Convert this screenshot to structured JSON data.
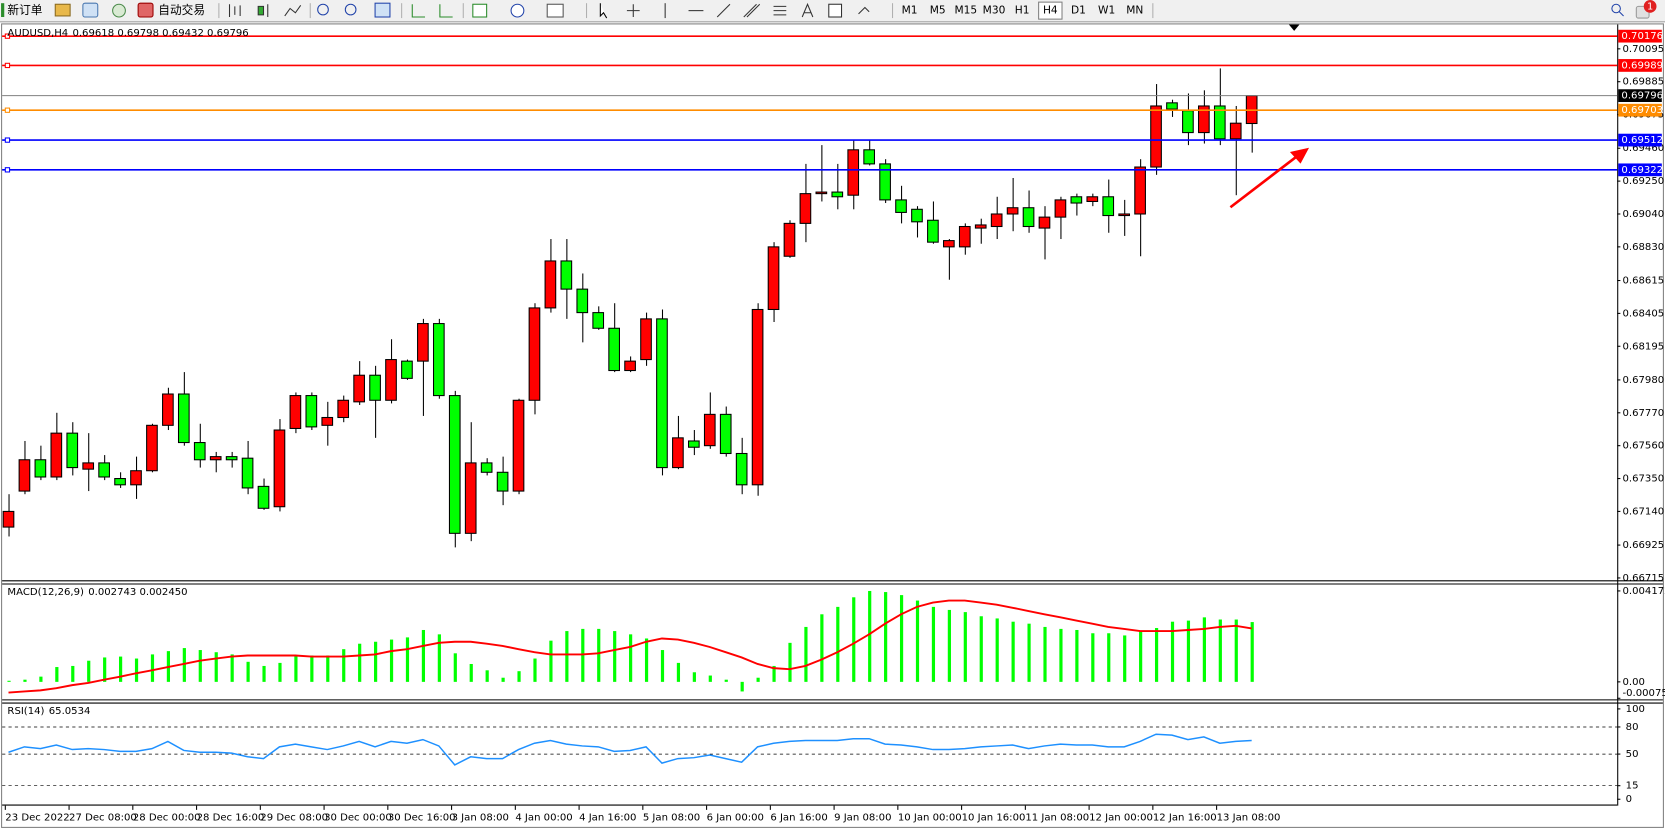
{
  "toolbar": {
    "new_order": "新订单",
    "auto_trading": "自动交易",
    "timeframes": [
      "M1",
      "M5",
      "M15",
      "M30",
      "H1",
      "H4",
      "D1",
      "W1",
      "MN"
    ],
    "active_timeframe": 5,
    "alerts": 1
  },
  "chart_data": [
    {
      "type": "candlestick",
      "title": "AUDUSD,H4",
      "up_color": "#ff0000",
      "down_color": "#00ff00",
      "grid": false,
      "categories": [
        "23 Dec 2022",
        null,
        null,
        null,
        "27 Dec 08:00",
        null,
        null,
        null,
        "28 Dec 00:00",
        null,
        null,
        null,
        "28 Dec 16:00",
        null,
        null,
        null,
        "29 Dec 08:00",
        null,
        null,
        null,
        "30 Dec 00:00",
        null,
        null,
        null,
        "30 Dec 16:00",
        null,
        null,
        null,
        "3 Jan 08:00",
        null,
        null,
        null,
        "4 Jan 00:00",
        null,
        null,
        null,
        "4 Jan 16:00",
        null,
        null,
        null,
        "5 Jan 08:00",
        null,
        null,
        null,
        "6 Jan 00:00",
        null,
        null,
        null,
        "6 Jan 16:00",
        null,
        null,
        null,
        "9 Jan 08:00",
        null,
        null,
        null,
        "10 Jan 00:00",
        null,
        null,
        null,
        "10 Jan 16:00",
        null,
        null,
        null,
        "11 Jan 08:00",
        null,
        null,
        null,
        "12 Jan 00:00",
        null,
        null,
        null,
        "12 Jan 16:00",
        null,
        null,
        null,
        "13 Jan 08:00",
        null,
        null
      ],
      "open": [
        0.6704,
        0.6727,
        0.6747,
        0.6736,
        0.6764,
        0.6741,
        0.6745,
        0.6735,
        0.6731,
        0.674,
        0.6769,
        0.6789,
        0.6758,
        0.6747,
        0.6749,
        0.6748,
        0.673,
        0.6717,
        0.6767,
        0.6788,
        0.6769,
        0.6774,
        0.6784,
        0.6801,
        0.6785,
        0.681,
        0.681,
        0.6834,
        0.6788,
        0.67,
        0.6745,
        0.6739,
        0.6727,
        0.6785,
        0.6844,
        0.6874,
        0.6856,
        0.6841,
        0.6831,
        0.6804,
        0.6811,
        0.6837,
        0.6742,
        0.6759,
        0.6756,
        0.6776,
        0.6751,
        0.6731,
        0.6843,
        0.6877,
        0.6898,
        0.6917,
        0.6918,
        0.6916,
        0.6945,
        0.6936,
        0.6913,
        0.6907,
        0.69,
        0.6883,
        0.6883,
        0.6895,
        0.6896,
        0.6904,
        0.6908,
        0.6895,
        0.6902,
        0.6915,
        0.6912,
        0.6915,
        0.6903,
        0.6904,
        0.6934,
        0.6975,
        0.697,
        0.6956,
        0.6973,
        0.6952,
        0.69618
      ],
      "high": [
        0.6725,
        0.6759,
        0.6756,
        0.6777,
        0.6771,
        0.6764,
        0.675,
        0.6739,
        0.6749,
        0.677,
        0.6793,
        0.6803,
        0.677,
        0.6752,
        0.6752,
        0.6759,
        0.6735,
        0.6773,
        0.679,
        0.679,
        0.6784,
        0.6788,
        0.681,
        0.6807,
        0.6824,
        0.6811,
        0.6837,
        0.6837,
        0.6791,
        0.6771,
        0.6748,
        0.6749,
        0.6786,
        0.6847,
        0.6888,
        0.6888,
        0.6866,
        0.6845,
        0.6847,
        0.6813,
        0.6841,
        0.6843,
        0.6775,
        0.6766,
        0.679,
        0.6781,
        0.6761,
        0.6847,
        0.6886,
        0.69,
        0.6936,
        0.6948,
        0.6936,
        0.6951,
        0.6951,
        0.6939,
        0.6922,
        0.6909,
        0.6912,
        0.6888,
        0.6898,
        0.6901,
        0.6915,
        0.6927,
        0.6919,
        0.6909,
        0.6915,
        0.6917,
        0.6917,
        0.6926,
        0.6913,
        0.6939,
        0.6987,
        0.6977,
        0.6981,
        0.6983,
        0.6997,
        0.6973,
        0.69798
      ],
      "low": [
        0.6698,
        0.6725,
        0.6734,
        0.6734,
        0.6737,
        0.6727,
        0.6734,
        0.6729,
        0.6722,
        0.6739,
        0.6766,
        0.6756,
        0.6742,
        0.6739,
        0.6742,
        0.6725,
        0.6715,
        0.6714,
        0.6764,
        0.6766,
        0.6756,
        0.6771,
        0.6782,
        0.6761,
        0.6783,
        0.6798,
        0.6775,
        0.6786,
        0.6691,
        0.6695,
        0.6737,
        0.6718,
        0.6725,
        0.6776,
        0.6841,
        0.6837,
        0.6822,
        0.683,
        0.6803,
        0.6803,
        0.6807,
        0.6737,
        0.6741,
        0.675,
        0.6754,
        0.6749,
        0.6725,
        0.6724,
        0.6835,
        0.6876,
        0.6886,
        0.6912,
        0.6907,
        0.6907,
        0.6935,
        0.6911,
        0.6898,
        0.6889,
        0.6885,
        0.6862,
        0.6878,
        0.6885,
        0.6888,
        0.6893,
        0.6892,
        0.6875,
        0.6888,
        0.6903,
        0.6909,
        0.6892,
        0.689,
        0.6877,
        0.6929,
        0.6966,
        0.6948,
        0.6949,
        0.6948,
        0.6916,
        0.69432
      ],
      "close": [
        0.6714,
        0.6747,
        0.6736,
        0.6764,
        0.6742,
        0.6745,
        0.6736,
        0.6731,
        0.674,
        0.6769,
        0.6789,
        0.6758,
        0.6747,
        0.6749,
        0.6747,
        0.6729,
        0.6716,
        0.6766,
        0.6788,
        0.6768,
        0.6774,
        0.6785,
        0.6801,
        0.6785,
        0.6811,
        0.6799,
        0.6834,
        0.6788,
        0.67,
        0.6745,
        0.6739,
        0.6727,
        0.6785,
        0.6844,
        0.6874,
        0.6856,
        0.6841,
        0.6831,
        0.6804,
        0.681,
        0.6837,
        0.6742,
        0.6761,
        0.6755,
        0.6776,
        0.6751,
        0.6731,
        0.6843,
        0.6883,
        0.6898,
        0.6917,
        0.6918,
        0.6915,
        0.6945,
        0.6936,
        0.6913,
        0.6905,
        0.6899,
        0.6886,
        0.6887,
        0.6896,
        0.6897,
        0.6904,
        0.6908,
        0.6896,
        0.6902,
        0.6913,
        0.6911,
        0.6915,
        0.6903,
        0.6904,
        0.6934,
        0.6973,
        0.6971,
        0.6956,
        0.6973,
        0.6952,
        0.6962,
        0.69796
      ],
      "ylim": [
        0.667,
        0.70244
      ],
      "yticks": [
        0.70095,
        0.69885,
        0.69675,
        {
          "value": 0.6946,
          "label": "0.69460"
        },
        {
          "value": 0.6925,
          "label": "0.69250"
        },
        {
          "value": 0.6904,
          "label": "0.69040"
        },
        {
          "value": 0.6883,
          "label": "0.68830"
        },
        0.68615,
        0.68405,
        0.68195,
        {
          "value": 0.6798,
          "label": "0.67980"
        },
        {
          "value": 0.6777,
          "label": "0.67770"
        },
        {
          "value": 0.6756,
          "label": "0.67560"
        },
        {
          "value": 0.6735,
          "label": "0.67350"
        },
        {
          "value": 0.6714,
          "label": "0.67140"
        },
        0.66925,
        0.66715
      ],
      "hlines": [
        {
          "value": 0.70176,
          "color": "#ff0000"
        },
        {
          "value": 0.69989,
          "color": "#ff0000"
        },
        {
          "value": 0.69703,
          "color": "#ff8c00"
        },
        {
          "value": 0.69512,
          "color": "#0000ff"
        },
        {
          "value": 0.69322,
          "color": "#0000ff"
        }
      ],
      "price_line_color": "#808080"
    },
    {
      "type": "macd",
      "title": "MACD(12,26,9)",
      "signal_readout": "0.002450",
      "histogram": {
        "color": "#00ff00",
        "values": [
          5e-05,
          0.0001,
          0.00024,
          0.00068,
          0.00073,
          0.00097,
          0.00112,
          0.00116,
          0.00107,
          0.00126,
          0.00141,
          0.00155,
          0.00146,
          0.00136,
          0.00126,
          0.00092,
          0.00073,
          0.00087,
          0.00121,
          0.00121,
          0.00121,
          0.0015,
          0.00175,
          0.00184,
          0.00194,
          0.00204,
          0.00238,
          0.00218,
          0.00131,
          0.00082,
          0.00053,
          0.00019,
          0.00049,
          0.00107,
          0.00189,
          0.00233,
          0.00243,
          0.00243,
          0.00233,
          0.00218,
          0.00199,
          0.00146,
          0.00087,
          0.00044,
          0.00029,
          0.0001,
          -0.00044,
          0.00019,
          0.00073,
          0.00179,
          0.00252,
          0.0031,
          0.00344,
          0.00388,
          0.00417,
          0.00412,
          0.00398,
          0.00373,
          0.00344,
          0.0033,
          0.0032,
          0.00301,
          0.00291,
          0.00276,
          0.00267,
          0.00252,
          0.00243,
          0.00238,
          0.00223,
          0.00223,
          0.00213,
          0.00233,
          0.00247,
          0.00276,
          0.00281,
          0.00296,
          0.00286,
          0.00286,
          0.002743
        ]
      },
      "signal": {
        "color": "#ff0000",
        "values": [
          -0.00049,
          -0.00044,
          -0.00039,
          -0.00029,
          -0.00015,
          -5e-05,
          0.0001,
          0.00024,
          0.00039,
          0.00053,
          0.00068,
          0.00082,
          0.00097,
          0.00107,
          0.00116,
          0.00121,
          0.00121,
          0.00121,
          0.00121,
          0.00116,
          0.00116,
          0.00116,
          0.00121,
          0.00126,
          0.00141,
          0.0015,
          0.00165,
          0.00179,
          0.00184,
          0.00184,
          0.00175,
          0.00165,
          0.0015,
          0.00136,
          0.00126,
          0.00126,
          0.00126,
          0.00131,
          0.00146,
          0.0016,
          0.00184,
          0.00199,
          0.00194,
          0.00179,
          0.0016,
          0.00136,
          0.00112,
          0.00082,
          0.00063,
          0.00058,
          0.00073,
          0.00102,
          0.00136,
          0.00175,
          0.00218,
          0.00267,
          0.0031,
          0.00344,
          0.00364,
          0.00373,
          0.00373,
          0.00364,
          0.00354,
          0.0034,
          0.00325,
          0.0031,
          0.00296,
          0.00281,
          0.00267,
          0.00252,
          0.00243,
          0.00233,
          0.00233,
          0.00233,
          0.00238,
          0.00243,
          0.00252,
          0.00257,
          0.00245
        ]
      },
      "ylim": [
        -0.000753,
        0.004172
      ],
      "yticks": [
        0.004172,
        {
          "value": 0,
          "label": "0.00"
        },
        -0.000753
      ]
    },
    {
      "type": "rsi",
      "title": "RSI(14)",
      "color": "#1e90ff",
      "values": [
        52,
        58,
        56,
        60,
        55,
        56,
        55,
        53,
        53,
        56,
        64,
        54,
        52,
        52,
        51,
        47,
        45,
        58,
        61,
        58,
        55,
        59,
        64,
        58,
        64,
        62,
        66,
        59,
        38,
        47,
        45,
        45,
        55,
        62,
        65,
        61,
        59,
        58,
        53,
        54,
        58,
        40,
        45,
        46,
        49,
        45,
        41,
        58,
        62,
        64,
        65,
        65,
        65,
        67,
        67,
        61,
        60,
        58,
        55,
        55,
        56,
        58,
        59,
        60,
        56,
        59,
        61,
        60,
        60,
        58,
        58,
        64,
        72,
        71,
        66,
        69,
        62,
        64,
        65.0534
      ],
      "ylim": [
        0,
        100
      ],
      "yticks": [
        100,
        80,
        50,
        15,
        0
      ],
      "level_color": "#000000"
    }
  ]
}
